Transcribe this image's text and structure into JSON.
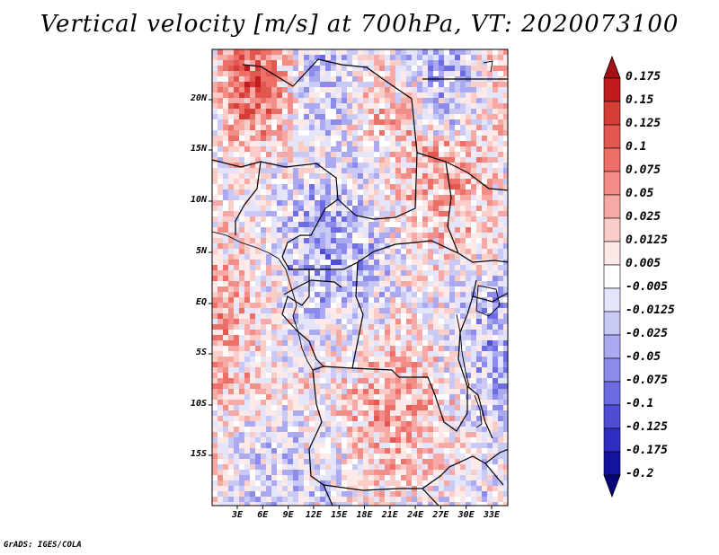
{
  "title": "Vertical velocity [m/s] at 700hPa, VT: 2020073100",
  "credit": "GrADS: IGES/COLA",
  "map": {
    "lat_ticks": [
      "20N",
      "15N",
      "10N",
      "5N",
      "EQ",
      "5S",
      "10S",
      "15S"
    ],
    "lon_ticks": [
      "3E",
      "6E",
      "9E",
      "12E",
      "15E",
      "18E",
      "21E",
      "24E",
      "27E",
      "30E",
      "33E"
    ]
  },
  "colorbar": {
    "labels": [
      "0.175",
      "0.15",
      "0.125",
      "0.1",
      "0.075",
      "0.05",
      "0.025",
      "0.0125",
      "0.005",
      "-0.005",
      "-0.0125",
      "-0.025",
      "-0.05",
      "-0.075",
      "-0.1",
      "-0.125",
      "-0.175",
      "-0.2"
    ],
    "colors": [
      "#a50f15",
      "#c01c1f",
      "#d53d37",
      "#e2574f",
      "#ec7068",
      "#f28e87",
      "#f7aaa5",
      "#fbcdc9",
      "#fde9e7",
      "#ffffff",
      "#e4e4fb",
      "#c9c9f5",
      "#abaaf0",
      "#8c8beb",
      "#6d6ce2",
      "#4e4dd4",
      "#2f2ec0",
      "#14139e",
      "#06057a"
    ],
    "top_color": "#a50f15",
    "bottom_color": "#06057a"
  }
}
